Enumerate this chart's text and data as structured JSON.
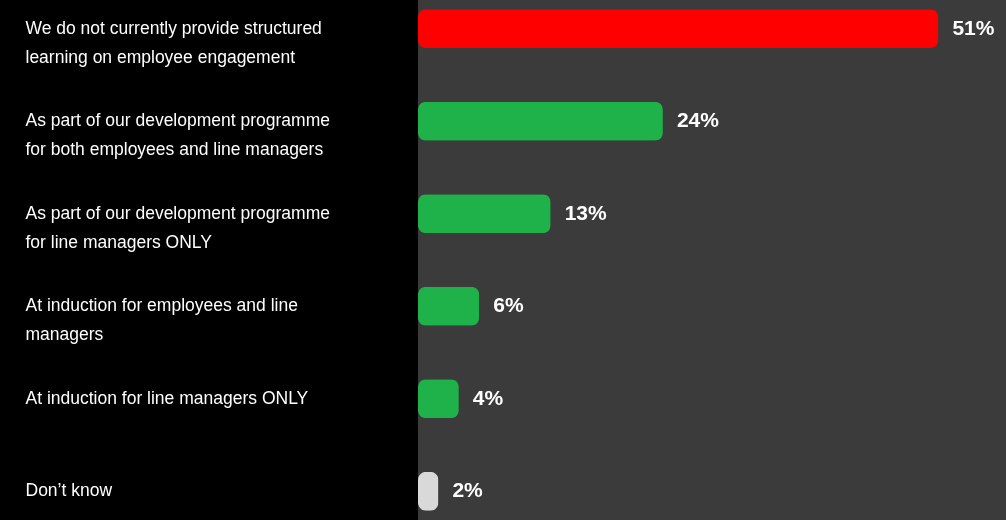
{
  "chart_data": {
    "type": "bar",
    "orientation": "horizontal",
    "categories": [
      "We do not currently provide structured learning on employee engagement",
      "As part of our development programme for both employees and line managers",
      "As part of our development programme for line managers ONLY",
      "At induction for employees and line managers",
      "At induction for line managers ONLY",
      "Don’t know"
    ],
    "values": [
      51,
      24,
      13,
      6,
      4,
      2
    ],
    "colors": [
      "#ff0000",
      "#1fb24a",
      "#1fb24a",
      "#1fb24a",
      "#1fb24a",
      "#d9d9d9"
    ],
    "value_labels": [
      "51%",
      "24%",
      "13%",
      "6%",
      "4%",
      "2%"
    ],
    "grid": false
  }
}
